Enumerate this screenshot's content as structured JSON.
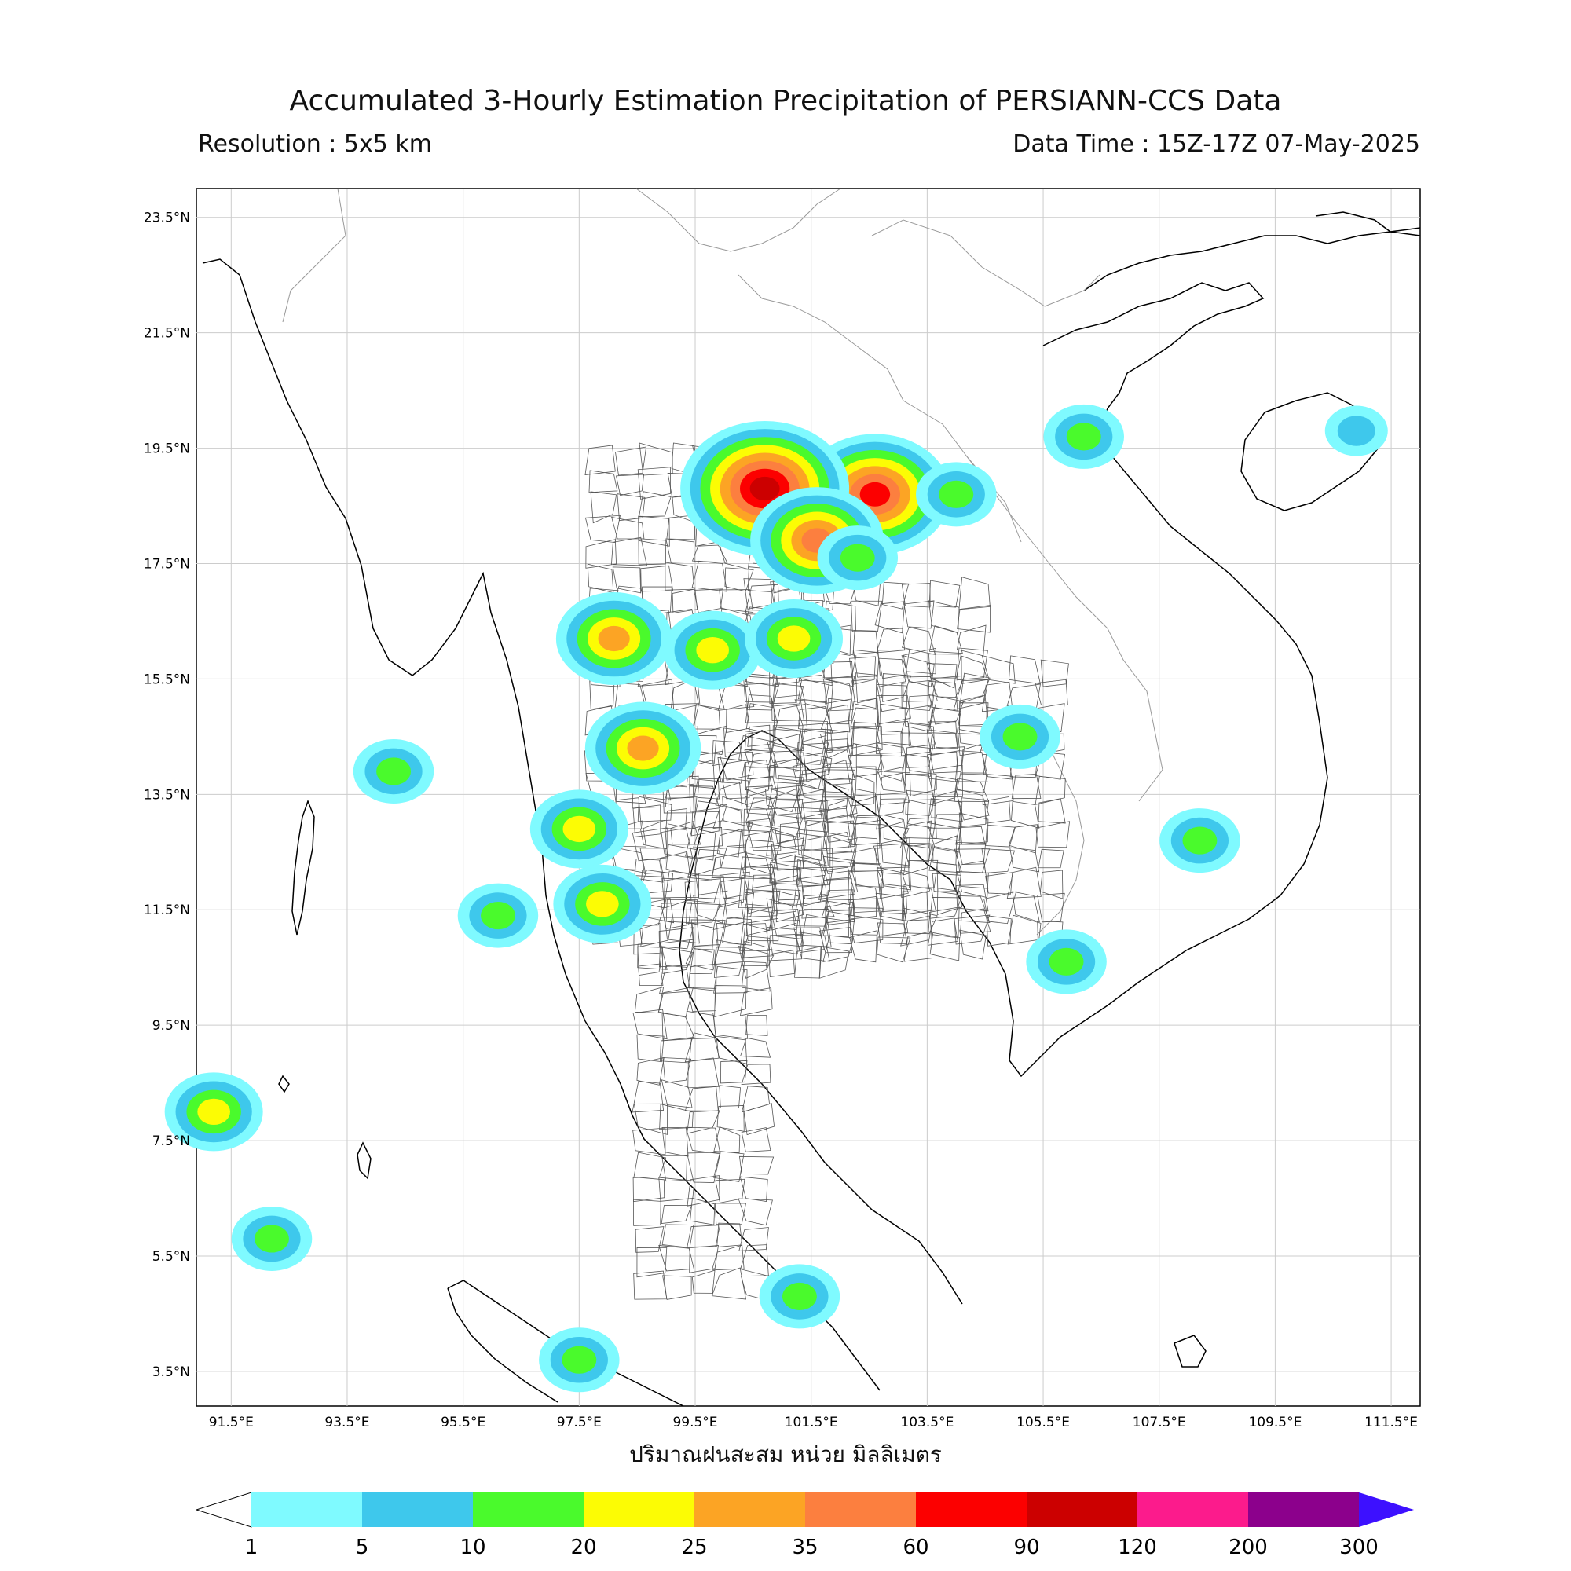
{
  "header": {
    "title": "Accumulated 3-Hourly Estimation Precipitation of PERSIANN-CCS Data",
    "resolution": "Resolution : 5x5 km",
    "data_time": "Data Time : 15Z-17Z 07-May-2025"
  },
  "map": {
    "lon_range": [
      90.9,
      112.0
    ],
    "lat_range": [
      2.9,
      24.0
    ],
    "lat_ticks": [
      "23.5°N",
      "21.5°N",
      "19.5°N",
      "17.5°N",
      "15.5°N",
      "13.5°N",
      "11.5°N",
      "9.5°N",
      "7.5°N",
      "5.5°N",
      "3.5°N"
    ],
    "lat_values": [
      23.5,
      21.5,
      19.5,
      17.5,
      15.5,
      13.5,
      11.5,
      9.5,
      7.5,
      5.5,
      3.5
    ],
    "lon_ticks": [
      "91.5°E",
      "93.5°E",
      "95.5°E",
      "97.5°E",
      "99.5°E",
      "101.5°E",
      "103.5°E",
      "105.5°E",
      "107.5°E",
      "109.5°E",
      "111.5°E"
    ],
    "lon_values": [
      91.5,
      93.5,
      95.5,
      97.5,
      99.5,
      101.5,
      103.5,
      105.5,
      107.5,
      109.5,
      111.5
    ],
    "precip_cells": [
      {
        "lon": 102.6,
        "lat": 18.7,
        "max_mm": 60
      },
      {
        "lon": 100.7,
        "lat": 18.8,
        "max_mm": 90
      },
      {
        "lon": 101.6,
        "lat": 17.9,
        "max_mm": 35
      },
      {
        "lon": 98.1,
        "lat": 16.2,
        "max_mm": 25
      },
      {
        "lon": 102.3,
        "lat": 17.6,
        "max_mm": 10
      },
      {
        "lon": 99.8,
        "lat": 16.0,
        "max_mm": 20
      },
      {
        "lon": 101.2,
        "lat": 16.2,
        "max_mm": 20
      },
      {
        "lon": 98.6,
        "lat": 14.3,
        "max_mm": 25
      },
      {
        "lon": 106.2,
        "lat": 19.7,
        "max_mm": 10
      },
      {
        "lon": 97.5,
        "lat": 12.9,
        "max_mm": 20
      },
      {
        "lon": 96.1,
        "lat": 11.4,
        "max_mm": 10
      },
      {
        "lon": 97.9,
        "lat": 11.6,
        "max_mm": 20
      },
      {
        "lon": 105.9,
        "lat": 10.6,
        "max_mm": 10
      },
      {
        "lon": 108.2,
        "lat": 12.7,
        "max_mm": 10
      },
      {
        "lon": 101.3,
        "lat": 4.8,
        "max_mm": 10
      },
      {
        "lon": 97.5,
        "lat": 3.7,
        "max_mm": 10
      },
      {
        "lon": 91.2,
        "lat": 8.0,
        "max_mm": 20
      },
      {
        "lon": 110.9,
        "lat": 19.8,
        "max_mm": 5
      },
      {
        "lon": 105.1,
        "lat": 14.5,
        "max_mm": 10
      },
      {
        "lon": 104.0,
        "lat": 18.7,
        "max_mm": 10
      },
      {
        "lon": 94.3,
        "lat": 13.9,
        "max_mm": 10
      },
      {
        "lon": 92.2,
        "lat": 5.8,
        "max_mm": 10
      }
    ]
  },
  "xlabel": "ปริมาณฝนสะสม หน่วย มิลลิเมตร",
  "colorbar": {
    "ticks": [
      "1",
      "5",
      "10",
      "20",
      "25",
      "35",
      "60",
      "90",
      "120",
      "200",
      "300"
    ],
    "colors": [
      "#7ffaff",
      "#3ec8ec",
      "#4afa2c",
      "#fcfc04",
      "#fca424",
      "#fc7f3f",
      "#fc0000",
      "#cc0000",
      "#fc1b8c",
      "#8c008c"
    ],
    "under_color": "#ffffff",
    "over_color": "#3d10ff"
  }
}
